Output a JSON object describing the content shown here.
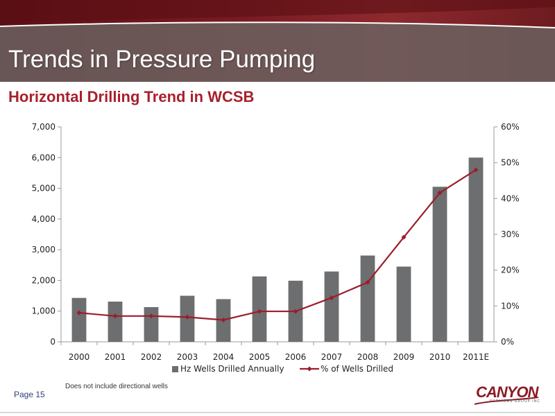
{
  "header": {
    "title": "Trends in Pressure Pumping"
  },
  "subtitle": "Horizontal Drilling Trend in WCSB",
  "footnote": "Does not include directional wells",
  "page_label": "Page 15",
  "logo": {
    "name": "CANYON",
    "tagline": "SERVICES GROUP INC"
  },
  "colors": {
    "header": "#6e1b20",
    "subtitle": "#a8202b",
    "bar": "#6d6e70",
    "line": "#9b1d2b"
  },
  "chart_data": {
    "type": "bar",
    "categories": [
      "2000",
      "2001",
      "2002",
      "2003",
      "2004",
      "2005",
      "2006",
      "2007",
      "2008",
      "2009",
      "2010",
      "2011E"
    ],
    "series": [
      {
        "name": "Hz Wells Drilled Annually",
        "type": "bar",
        "axis": "left",
        "values": [
          1430,
          1310,
          1130,
          1500,
          1390,
          2130,
          1990,
          2290,
          2810,
          2450,
          5050,
          6000
        ]
      },
      {
        "name": "% of Wells Drilled",
        "type": "line",
        "axis": "right",
        "values": [
          8.1,
          7.2,
          7.2,
          6.9,
          6.1,
          8.5,
          8.5,
          12.3,
          16.6,
          29.2,
          41.6,
          48.0
        ]
      }
    ],
    "y_left": {
      "min": 0,
      "max": 7000,
      "ticks": [
        0,
        1000,
        2000,
        3000,
        4000,
        5000,
        6000,
        7000
      ],
      "tick_labels": [
        "0",
        "1,000",
        "2,000",
        "3,000",
        "4,000",
        "5,000",
        "6,000",
        "7,000"
      ]
    },
    "y_right": {
      "min": 0,
      "max": 60,
      "ticks": [
        0,
        10,
        20,
        30,
        40,
        50,
        60
      ],
      "tick_labels": [
        "0%",
        "10%",
        "20%",
        "30%",
        "40%",
        "50%",
        "60%"
      ]
    },
    "grid": false,
    "legend": "bottom"
  }
}
